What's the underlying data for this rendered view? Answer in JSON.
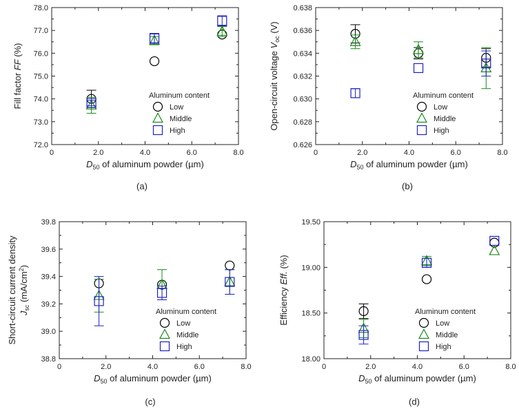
{
  "figure": {
    "caption_labels": [
      "(a)",
      "(b)",
      "(c)",
      "(d)"
    ],
    "colors": {
      "Low": "#000000",
      "Middle": "#1a8a1a",
      "High": "#2020c8"
    }
  },
  "chart_data": [
    {
      "id": "a",
      "type": "scatter",
      "caption": "(a)",
      "ylabel_parts": [
        "Fill factor ",
        "FF",
        " (%)"
      ],
      "xlabel_parts": [
        "D",
        "50",
        " of aluminum powder (µm)"
      ],
      "xlim": [
        0,
        8
      ],
      "xticks": [
        "0",
        "2.0",
        "4.0",
        "6.0",
        "8.0"
      ],
      "ylim": [
        72,
        78
      ],
      "yticks": [
        "72.0",
        "73.0",
        "74.0",
        "75.0",
        "76.0",
        "77.0",
        "78.0"
      ],
      "legend_title": "Aluminum content",
      "legend_entries": [
        "Low",
        "Middle",
        "High"
      ],
      "series": [
        {
          "name": "Low",
          "marker": "circle",
          "x": [
            1.7,
            4.4,
            7.3
          ],
          "y": [
            74.0,
            75.65,
            76.82
          ],
          "err": [
            0.38,
            0.0,
            0.0
          ]
        },
        {
          "name": "Middle",
          "marker": "triangle",
          "x": [
            1.7,
            4.4,
            7.3
          ],
          "y": [
            73.72,
            76.55,
            76.95
          ],
          "err": [
            0.35,
            0.18,
            0.22
          ]
        },
        {
          "name": "High",
          "marker": "square",
          "x": [
            1.7,
            4.4,
            7.3
          ],
          "y": [
            73.82,
            76.65,
            77.42
          ],
          "err": [
            0.12,
            0.22,
            0.22
          ]
        }
      ]
    },
    {
      "id": "b",
      "type": "scatter",
      "caption": "(b)",
      "ylabel_parts": [
        "Open-circuit voltage ",
        "V",
        "oc",
        " (V)"
      ],
      "xlabel_parts": [
        "D",
        "50",
        " of aluminum powder (µm)"
      ],
      "xlim": [
        0,
        8
      ],
      "xticks": [
        "0",
        "2.0",
        "4.0",
        "6.0",
        "8.0"
      ],
      "ylim": [
        0.626,
        0.638
      ],
      "yticks": [
        "0.626",
        "0.628",
        "0.630",
        "0.632",
        "0.634",
        "0.636",
        "0.638"
      ],
      "legend_title": "Aluminum content",
      "legend_entries": [
        "Low",
        "Middle",
        "High"
      ],
      "series": [
        {
          "name": "Low",
          "marker": "circle",
          "x": [
            1.7,
            4.4,
            7.3
          ],
          "y": [
            0.6357,
            0.634,
            0.6336
          ],
          "err": [
            0.0008,
            0.0005,
            0.0008
          ]
        },
        {
          "name": "Middle",
          "marker": "triangle",
          "x": [
            1.7,
            4.4,
            7.3
          ],
          "y": [
            0.635,
            0.6343,
            0.6327
          ],
          "err": [
            0.0006,
            0.0007,
            0.0018
          ]
        },
        {
          "name": "High",
          "marker": "square",
          "x": [
            1.7,
            4.4,
            7.3
          ],
          "y": [
            0.6305,
            0.6327,
            0.6331
          ],
          "err": [
            0.0004,
            0.0,
            0.0011
          ]
        }
      ]
    },
    {
      "id": "c",
      "type": "scatter",
      "caption": "(c)",
      "ylabel_parts": [
        "Short-circuit current density",
        "J",
        "sc",
        " (mA/cm",
        "2",
        ")"
      ],
      "xlabel_parts": [
        "D",
        "50",
        " of aluminum powder (µm)"
      ],
      "xlim": [
        0,
        8
      ],
      "xticks": [
        "0",
        "2.0",
        "4.0",
        "6.0",
        "8.0"
      ],
      "ylim": [
        38.8,
        39.8
      ],
      "yticks": [
        "38.8",
        "39.0",
        "39.2",
        "39.4",
        "39.6",
        "39.8"
      ],
      "legend_title": "Aluminum content",
      "legend_entries": [
        "Low",
        "Middle",
        "High"
      ],
      "series": [
        {
          "name": "Low",
          "marker": "circle",
          "x": [
            1.7,
            4.4,
            7.3
          ],
          "y": [
            39.35,
            39.34,
            39.48
          ],
          "err": [
            0.0,
            0.0,
            0.0
          ]
        },
        {
          "name": "Middle",
          "marker": "triangle",
          "x": [
            1.7,
            4.4,
            7.3
          ],
          "y": [
            39.26,
            39.34,
            39.36
          ],
          "err": [
            0.12,
            0.11,
            0.09
          ]
        },
        {
          "name": "High",
          "marker": "square",
          "x": [
            1.7,
            4.4,
            7.3
          ],
          "y": [
            39.22,
            39.28,
            39.36
          ],
          "err": [
            0.18,
            0.05,
            0.09
          ]
        }
      ]
    },
    {
      "id": "d",
      "type": "scatter",
      "caption": "(d)",
      "ylabel_parts": [
        "Efficiency ",
        "Eff.",
        " (%)"
      ],
      "xlabel_parts": [
        "D",
        "50",
        " of aluminum powder (µm)"
      ],
      "xlim": [
        0,
        8
      ],
      "xticks": [
        "0",
        "2.0",
        "4.0",
        "6.0",
        "8.0"
      ],
      "ylim": [
        18.0,
        19.5
      ],
      "yticks": [
        "18.00",
        "18.50",
        "19.00",
        "19.50"
      ],
      "legend_title": "Aluminum content",
      "legend_entries": [
        "Low",
        "Middle",
        "High"
      ],
      "series": [
        {
          "name": "Low",
          "marker": "circle",
          "x": [
            1.7,
            4.4,
            7.3
          ],
          "y": [
            18.52,
            18.87,
            19.27
          ],
          "err": [
            0.08,
            0.0,
            0.0
          ]
        },
        {
          "name": "Middle",
          "marker": "triangle",
          "x": [
            1.7,
            4.4,
            7.3
          ],
          "y": [
            18.33,
            19.07,
            19.18
          ],
          "err": [
            0.1,
            0.05,
            0.0
          ]
        },
        {
          "name": "High",
          "marker": "square",
          "x": [
            1.7,
            4.4,
            7.3
          ],
          "y": [
            18.26,
            19.05,
            19.29
          ],
          "err": [
            0.1,
            0.05,
            0.0
          ]
        }
      ]
    }
  ]
}
